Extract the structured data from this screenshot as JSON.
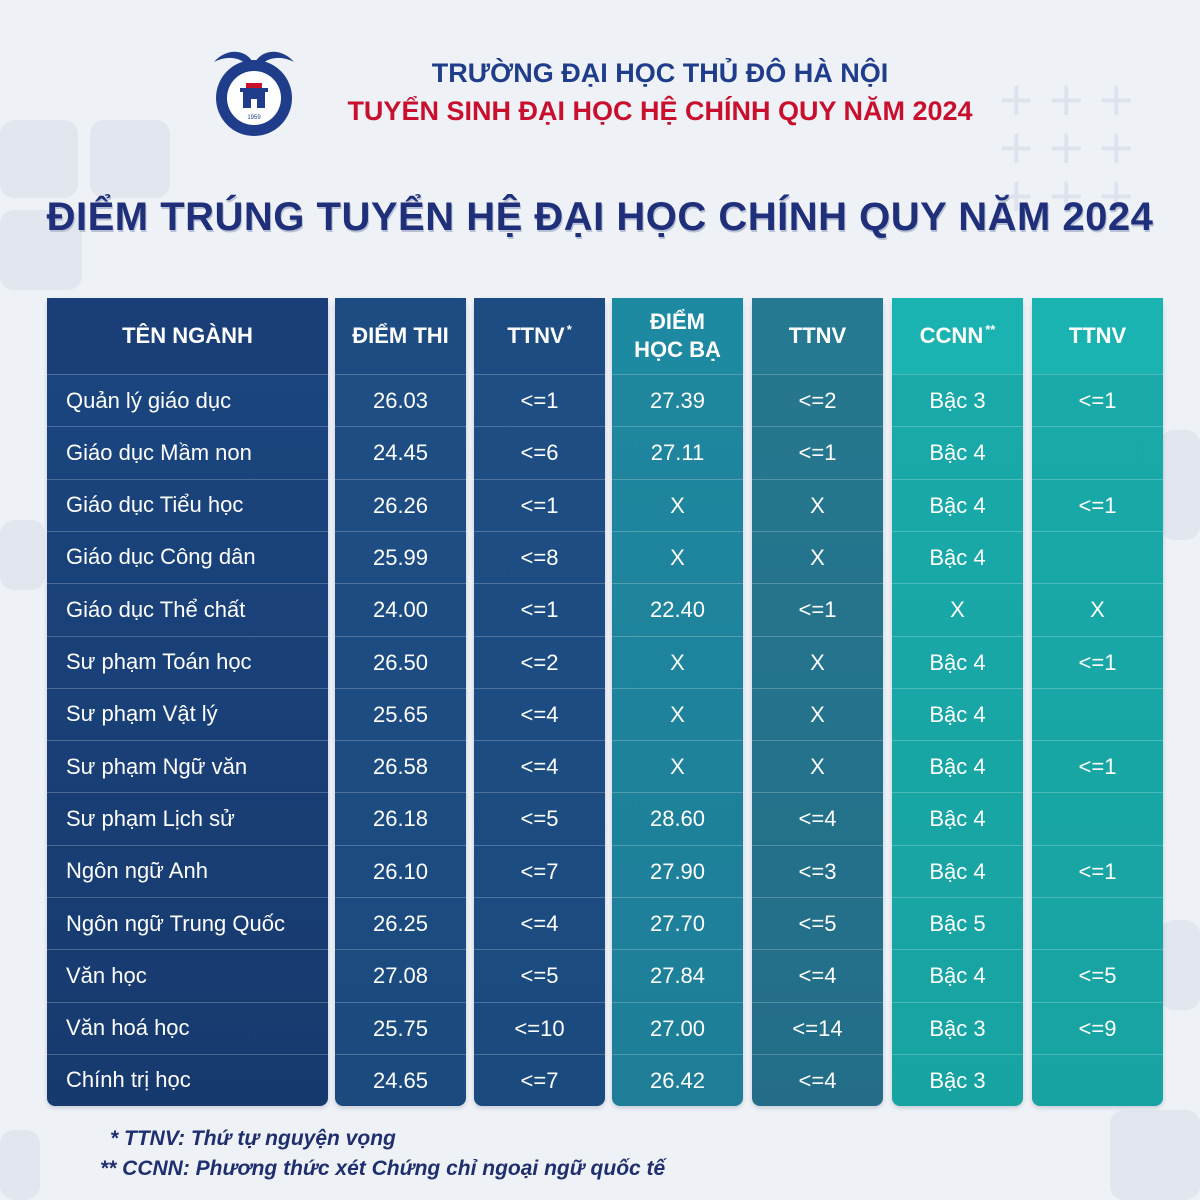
{
  "header": {
    "school_name": "TRƯỜNG ĐẠI HỌC THỦ ĐÔ HÀ NỘI",
    "admission_title": "TUYỂN SINH ĐẠI HỌC HỆ CHÍNH QUY NĂM 2024",
    "logo_text": "TRƯỜNG ĐẠI HỌC THỦ ĐÔ HÀ NỘI",
    "logo_year": "1959"
  },
  "main_title": "ĐIỂM TRÚNG TUYỂN HỆ ĐẠI HỌC CHÍNH QUY NĂM 2024",
  "table": {
    "headers": {
      "name": "TÊN NGÀNH",
      "exam_score": "ĐIỂM THI",
      "exam_ttnv": "TTNV",
      "exam_ttnv_mark": "*",
      "transcript_line1": "ĐIỂM",
      "transcript_line2": "HỌC BẠ",
      "transcript_ttnv": "TTNV",
      "ccnn": "CCNN",
      "ccnn_mark": "**",
      "ccnn_ttnv": "TTNV"
    },
    "rows": [
      {
        "name": "Quản lý giáo dục",
        "exam": "26.03",
        "exam_ttnv": "<=1",
        "transcript": "27.39",
        "transcript_ttnv": "<=2",
        "ccnn": "Bậc 3",
        "ccnn_ttnv": "<=1"
      },
      {
        "name": "Giáo dục Mầm non",
        "exam": "24.45",
        "exam_ttnv": "<=6",
        "transcript": "27.11",
        "transcript_ttnv": "<=1",
        "ccnn": "Bậc 4",
        "ccnn_ttnv": ""
      },
      {
        "name": "Giáo dục Tiểu học",
        "exam": "26.26",
        "exam_ttnv": "<=1",
        "transcript": "X",
        "transcript_ttnv": "X",
        "ccnn": "Bậc 4",
        "ccnn_ttnv": "<=1"
      },
      {
        "name": "Giáo dục Công dân",
        "exam": "25.99",
        "exam_ttnv": "<=8",
        "transcript": "X",
        "transcript_ttnv": "X",
        "ccnn": "Bậc 4",
        "ccnn_ttnv": ""
      },
      {
        "name": "Giáo dục Thể chất",
        "exam": "24.00",
        "exam_ttnv": "<=1",
        "transcript": "22.40",
        "transcript_ttnv": "<=1",
        "ccnn": "X",
        "ccnn_ttnv": "X"
      },
      {
        "name": "Sư phạm Toán học",
        "exam": "26.50",
        "exam_ttnv": "<=2",
        "transcript": "X",
        "transcript_ttnv": "X",
        "ccnn": "Bậc 4",
        "ccnn_ttnv": "<=1"
      },
      {
        "name": "Sư phạm Vật lý",
        "exam": "25.65",
        "exam_ttnv": "<=4",
        "transcript": "X",
        "transcript_ttnv": "X",
        "ccnn": "Bậc 4",
        "ccnn_ttnv": ""
      },
      {
        "name": "Sư phạm Ngữ văn",
        "exam": "26.58",
        "exam_ttnv": "<=4",
        "transcript": "X",
        "transcript_ttnv": "X",
        "ccnn": "Bậc 4",
        "ccnn_ttnv": "<=1"
      },
      {
        "name": "Sư phạm Lịch sử",
        "exam": "26.18",
        "exam_ttnv": "<=5",
        "transcript": "28.60",
        "transcript_ttnv": "<=4",
        "ccnn": "Bậc 4",
        "ccnn_ttnv": ""
      },
      {
        "name": "Ngôn ngữ Anh",
        "exam": "26.10",
        "exam_ttnv": "<=7",
        "transcript": "27.90",
        "transcript_ttnv": "<=3",
        "ccnn": "Bậc 4",
        "ccnn_ttnv": "<=1"
      },
      {
        "name": "Ngôn ngữ Trung Quốc",
        "exam": "26.25",
        "exam_ttnv": "<=4",
        "transcript": "27.70",
        "transcript_ttnv": "<=5",
        "ccnn": "Bậc 5",
        "ccnn_ttnv": ""
      },
      {
        "name": "Văn học",
        "exam": "27.08",
        "exam_ttnv": "<=5",
        "transcript": "27.84",
        "transcript_ttnv": "<=4",
        "ccnn": "Bậc 4",
        "ccnn_ttnv": "<=5"
      },
      {
        "name": "Văn hoá học",
        "exam": "25.75",
        "exam_ttnv": "<=10",
        "transcript": "27.00",
        "transcript_ttnv": "<=14",
        "ccnn": "Bậc 3",
        "ccnn_ttnv": "<=9"
      },
      {
        "name": "Chính trị học",
        "exam": "24.65",
        "exam_ttnv": "<=7",
        "transcript": "26.42",
        "transcript_ttnv": "<=4",
        "ccnn": "Bậc 3",
        "ccnn_ttnv": ""
      }
    ]
  },
  "footnotes": {
    "ttnv": "* TTNV: Thứ tự nguyện vọng",
    "ccnn": "** CCNN: Phương thức xét Chứng chỉ ngoại ngữ quốc tế"
  },
  "colors": {
    "title_blue": "#1f2f7a",
    "school_blue": "#1f3d8a",
    "accent_red": "#c8102e",
    "col_name": "#173a6e",
    "col_exam": "#1a4a7e",
    "col_transcript": "#1e7e98",
    "col_transcript_ttnv": "#236d88",
    "col_ccnn": "#17a3a2"
  }
}
